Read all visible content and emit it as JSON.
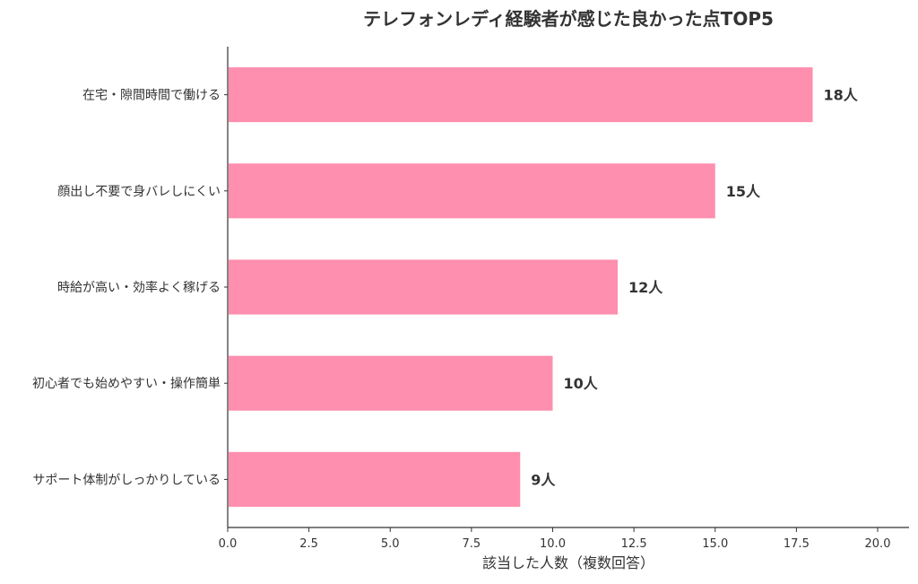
{
  "chart_data": {
    "type": "bar",
    "orientation": "horizontal",
    "title": "テレフォンレディ経験者が感じた良かった点TOP5",
    "xlabel": "該当した人数（複数回答）",
    "ylabel": "",
    "categories": [
      "在宅・隙間時間で働ける",
      "顔出し不要で身バレしにくい",
      "時給が高い・効率よく稼げる",
      "初心者でも始めやすい・操作簡単",
      "サポート体制がしっかりしている"
    ],
    "values": [
      18,
      15,
      12,
      10,
      9
    ],
    "data_labels": [
      "18人",
      "15人",
      "12人",
      "10人",
      "9人"
    ],
    "xlim": [
      0,
      21
    ],
    "xticks": [
      "0.0",
      "2.5",
      "5.0",
      "7.5",
      "10.0",
      "12.5",
      "15.0",
      "17.5",
      "20.0"
    ],
    "grid": false,
    "bar_color": "#ff8fae",
    "axis_color": "#333333"
  }
}
